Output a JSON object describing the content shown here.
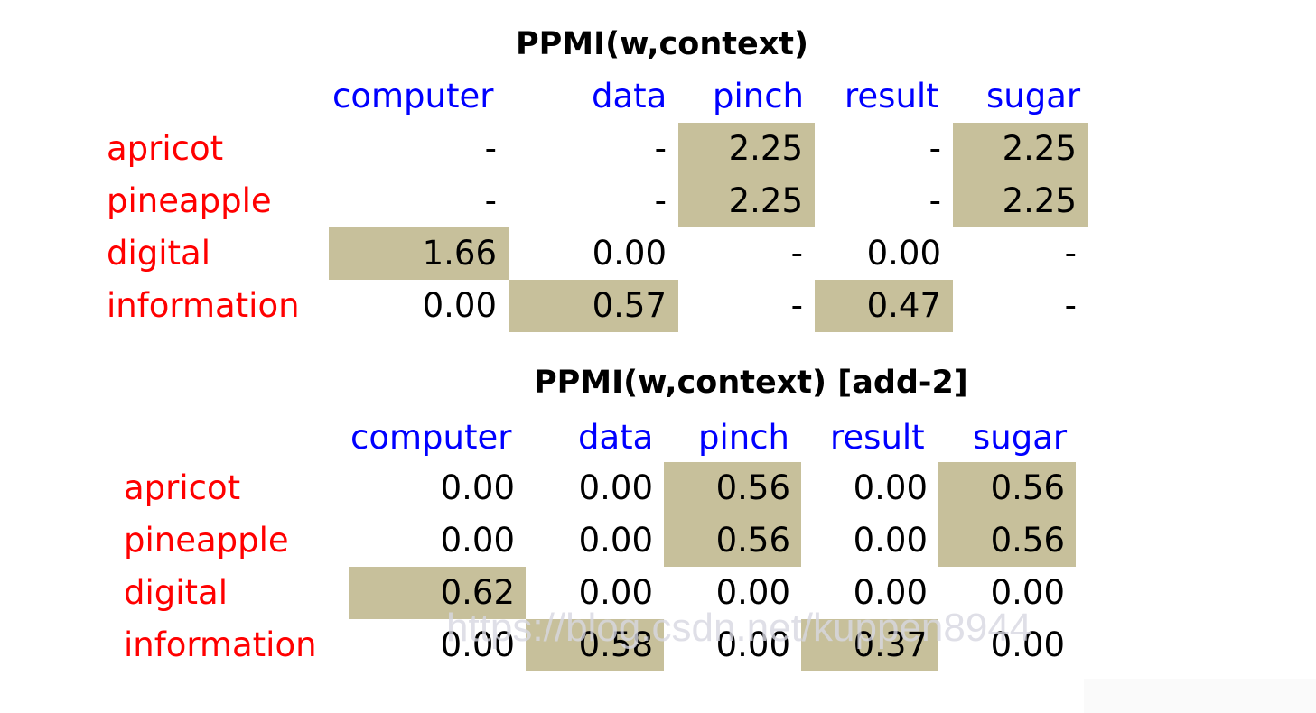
{
  "tables": [
    {
      "title": "PPMI(w,context)",
      "columns": [
        "computer",
        "data",
        "pinch",
        "result",
        "sugar"
      ],
      "rows": [
        {
          "label": "apricot",
          "values": [
            "-",
            "-",
            "2.25",
            "-",
            "2.25"
          ],
          "highlight": [
            false,
            false,
            true,
            false,
            true
          ]
        },
        {
          "label": "pineapple",
          "values": [
            "-",
            "-",
            "2.25",
            "-",
            "2.25"
          ],
          "highlight": [
            false,
            false,
            true,
            false,
            true
          ]
        },
        {
          "label": "digital",
          "values": [
            "1.66",
            "0.00",
            "-",
            "0.00",
            "-"
          ],
          "highlight": [
            true,
            false,
            false,
            false,
            false
          ]
        },
        {
          "label": "information",
          "values": [
            "0.00",
            "0.57",
            "-",
            "0.47",
            "-"
          ],
          "highlight": [
            false,
            true,
            false,
            true,
            false
          ]
        }
      ]
    },
    {
      "title": "PPMI(w,context) [add-2]",
      "columns": [
        "computer",
        "data",
        "pinch",
        "result",
        "sugar"
      ],
      "rows": [
        {
          "label": "apricot",
          "values": [
            "0.00",
            "0.00",
            "0.56",
            "0.00",
            "0.56"
          ],
          "highlight": [
            false,
            false,
            true,
            false,
            true
          ]
        },
        {
          "label": "pineapple",
          "values": [
            "0.00",
            "0.00",
            "0.56",
            "0.00",
            "0.56"
          ],
          "highlight": [
            false,
            false,
            true,
            false,
            true
          ]
        },
        {
          "label": "digital",
          "values": [
            "0.62",
            "0.00",
            "0.00",
            "0.00",
            "0.00"
          ],
          "highlight": [
            true,
            false,
            false,
            false,
            false
          ]
        },
        {
          "label": "information",
          "values": [
            "0.00",
            "0.58",
            "0.00",
            "0.37",
            "0.00"
          ],
          "highlight": [
            false,
            true,
            false,
            true,
            false
          ]
        }
      ]
    }
  ],
  "watermark": "https://blog.csdn.net/kuppen8944",
  "colors": {
    "row_label": "#ff0000",
    "column_header": "#0000ff",
    "highlight": "#c7c09b"
  }
}
